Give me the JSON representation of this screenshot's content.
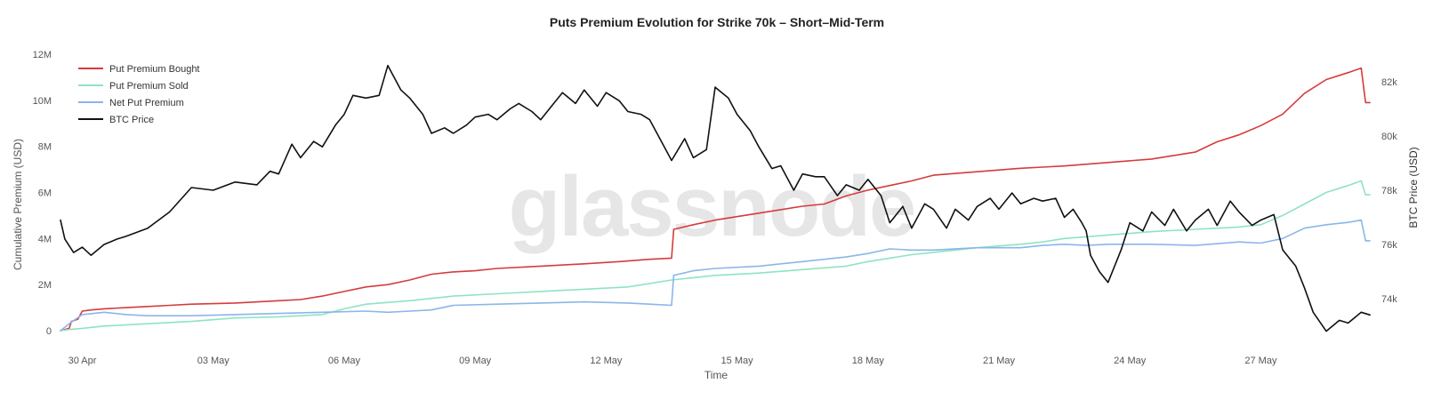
{
  "watermark": "glassnode",
  "chart_data": {
    "type": "line",
    "title": "Puts Premium Evolution for Strike 70k – Short–Mid-Term",
    "xlabel": "Time",
    "ylabel": "Cumulative Premium (USD)",
    "y2label": "BTC Price (USD)",
    "xlim": [
      0,
      30.1
    ],
    "ylim": [
      0,
      12000000
    ],
    "y2lim": [
      72000,
      83000
    ],
    "x_ticks": [
      {
        "x": 0.5,
        "label": "30 Apr"
      },
      {
        "x": 3.5,
        "label": "03 May"
      },
      {
        "x": 6.5,
        "label": "06 May"
      },
      {
        "x": 9.5,
        "label": "09 May"
      },
      {
        "x": 12.5,
        "label": "12 May"
      },
      {
        "x": 15.5,
        "label": "15 May"
      },
      {
        "x": 18.5,
        "label": "18 May"
      },
      {
        "x": 21.5,
        "label": "21 May"
      },
      {
        "x": 24.5,
        "label": "24 May"
      },
      {
        "x": 27.5,
        "label": "27 May"
      }
    ],
    "y_ticks": [
      {
        "v": 0,
        "label": "0"
      },
      {
        "v": 2000000,
        "label": "2M"
      },
      {
        "v": 4000000,
        "label": "4M"
      },
      {
        "v": 6000000,
        "label": "6M"
      },
      {
        "v": 8000000,
        "label": "8M"
      },
      {
        "v": 10000000,
        "label": "10M"
      },
      {
        "v": 12000000,
        "label": "12M"
      }
    ],
    "y2_ticks": [
      {
        "v": 74000,
        "label": "74k"
      },
      {
        "v": 76000,
        "label": "76k"
      },
      {
        "v": 78000,
        "label": "78k"
      },
      {
        "v": 80000,
        "label": "80k"
      },
      {
        "v": 82000,
        "label": "82k"
      }
    ],
    "legend_position": "top-left",
    "grid": false,
    "series": [
      {
        "name": "Put Premium Bought",
        "color": "#d63b3b",
        "axis": "left",
        "x": [
          0.0,
          0.2,
          0.25,
          0.4,
          0.5,
          0.7,
          1.0,
          1.5,
          2.0,
          2.5,
          3.0,
          4.0,
          5.0,
          5.5,
          6.0,
          6.5,
          7.0,
          7.5,
          8.0,
          8.5,
          9.0,
          9.5,
          10.0,
          11.0,
          12.0,
          12.8,
          13.5,
          14.0,
          14.05,
          14.5,
          15.0,
          16.0,
          17.0,
          17.5,
          18.0,
          18.5,
          19.0,
          19.5,
          20.0,
          21.0,
          22.0,
          22.5,
          23.0,
          24.0,
          25.0,
          26.0,
          26.5,
          27.0,
          27.5,
          28.0,
          28.5,
          29.0,
          29.5,
          29.8,
          29.9,
          30.0
        ],
        "y": [
          0,
          100000,
          400000,
          500000,
          850000,
          900000,
          950000,
          1000000,
          1050000,
          1100000,
          1150000,
          1200000,
          1300000,
          1350000,
          1500000,
          1700000,
          1900000,
          2000000,
          2200000,
          2450000,
          2550000,
          2600000,
          2700000,
          2800000,
          2900000,
          3000000,
          3100000,
          3150000,
          4400000,
          4600000,
          4800000,
          5100000,
          5400000,
          5500000,
          5850000,
          6100000,
          6300000,
          6500000,
          6750000,
          6900000,
          7050000,
          7100000,
          7150000,
          7300000,
          7450000,
          7750000,
          8200000,
          8500000,
          8900000,
          9400000,
          10300000,
          10900000,
          11200000,
          11400000,
          9900000,
          9900000
        ]
      },
      {
        "name": "Put Premium Sold",
        "color": "#8fe3c4",
        "axis": "left",
        "x": [
          0.0,
          0.2,
          0.5,
          1.0,
          2.0,
          3.0,
          4.0,
          5.0,
          5.5,
          6.0,
          6.5,
          7.0,
          8.0,
          9.0,
          10.0,
          11.0,
          12.0,
          13.0,
          14.0,
          14.5,
          15.0,
          16.0,
          17.0,
          18.0,
          18.5,
          19.0,
          19.5,
          20.0,
          21.0,
          22.0,
          22.5,
          23.0,
          24.0,
          25.0,
          26.0,
          27.0,
          27.5,
          28.0,
          28.5,
          29.0,
          29.5,
          29.8,
          29.9,
          30.0
        ],
        "y": [
          0,
          50000,
          100000,
          200000,
          300000,
          400000,
          550000,
          600000,
          650000,
          700000,
          950000,
          1150000,
          1300000,
          1500000,
          1600000,
          1700000,
          1800000,
          1900000,
          2200000,
          2300000,
          2400000,
          2500000,
          2650000,
          2800000,
          3000000,
          3150000,
          3300000,
          3400000,
          3600000,
          3750000,
          3850000,
          4000000,
          4150000,
          4300000,
          4400000,
          4500000,
          4600000,
          5000000,
          5500000,
          6000000,
          6300000,
          6500000,
          5900000,
          5900000
        ]
      },
      {
        "name": "Net Put Premium",
        "color": "#8ab6ea",
        "axis": "left",
        "x": [
          0.0,
          0.2,
          0.5,
          1.0,
          1.5,
          2.0,
          3.0,
          4.0,
          5.0,
          6.0,
          7.0,
          7.5,
          8.0,
          8.5,
          9.0,
          10.0,
          11.0,
          12.0,
          13.0,
          13.5,
          14.0,
          14.05,
          14.5,
          15.0,
          16.0,
          17.0,
          18.0,
          18.5,
          19.0,
          19.5,
          20.0,
          21.0,
          22.0,
          22.5,
          23.0,
          23.5,
          24.0,
          25.0,
          26.0,
          27.0,
          27.5,
          28.0,
          28.5,
          29.0,
          29.5,
          29.8,
          29.9,
          30.0
        ],
        "y": [
          0,
          300000,
          700000,
          800000,
          700000,
          650000,
          650000,
          700000,
          750000,
          800000,
          850000,
          800000,
          850000,
          900000,
          1100000,
          1150000,
          1200000,
          1250000,
          1200000,
          1150000,
          1100000,
          2400000,
          2600000,
          2700000,
          2800000,
          3000000,
          3200000,
          3350000,
          3550000,
          3500000,
          3500000,
          3600000,
          3600000,
          3700000,
          3750000,
          3700000,
          3750000,
          3750000,
          3700000,
          3850000,
          3800000,
          4000000,
          4450000,
          4600000,
          4700000,
          4800000,
          3900000,
          3900000
        ]
      },
      {
        "name": "BTC Price",
        "color": "#111111",
        "axis": "right",
        "x": [
          0.0,
          0.1,
          0.3,
          0.5,
          0.7,
          1.0,
          1.3,
          1.5,
          2.0,
          2.5,
          3.0,
          3.5,
          4.0,
          4.5,
          4.8,
          5.0,
          5.3,
          5.5,
          5.8,
          6.0,
          6.3,
          6.5,
          6.7,
          7.0,
          7.3,
          7.5,
          7.8,
          8.0,
          8.3,
          8.5,
          8.8,
          9.0,
          9.3,
          9.5,
          9.8,
          10.0,
          10.3,
          10.5,
          10.8,
          11.0,
          11.3,
          11.5,
          11.8,
          12.0,
          12.3,
          12.5,
          12.8,
          13.0,
          13.3,
          13.5,
          13.8,
          14.0,
          14.3,
          14.5,
          14.8,
          15.0,
          15.3,
          15.5,
          15.8,
          16.0,
          16.3,
          16.5,
          16.8,
          17.0,
          17.3,
          17.5,
          17.8,
          18.0,
          18.3,
          18.5,
          18.8,
          19.0,
          19.3,
          19.5,
          19.8,
          20.0,
          20.3,
          20.5,
          20.8,
          21.0,
          21.3,
          21.5,
          21.8,
          22.0,
          22.3,
          22.5,
          22.8,
          23.0,
          23.2,
          23.4,
          23.5,
          23.6,
          23.8,
          24.0,
          24.3,
          24.5,
          24.8,
          25.0,
          25.3,
          25.5,
          25.8,
          26.0,
          26.3,
          26.5,
          26.8,
          27.0,
          27.3,
          27.5,
          27.8,
          28.0,
          28.3,
          28.5,
          28.7,
          29.0,
          29.3,
          29.5,
          29.8,
          30.0
        ],
        "y": [
          76900,
          76200,
          75700,
          75900,
          75600,
          76000,
          76200,
          76300,
          76600,
          77200,
          78100,
          78000,
          78300,
          78200,
          78700,
          78600,
          79700,
          79200,
          79800,
          79600,
          80400,
          80800,
          81500,
          81400,
          81500,
          82600,
          81700,
          81400,
          80800,
          80100,
          80300,
          80100,
          80400,
          80700,
          80800,
          80600,
          81000,
          81200,
          80900,
          80600,
          81200,
          81600,
          81200,
          81700,
          81100,
          81600,
          81300,
          80900,
          80800,
          80600,
          79700,
          79100,
          79900,
          79200,
          79500,
          81800,
          81400,
          80800,
          80200,
          79600,
          78800,
          78900,
          78000,
          78600,
          78500,
          78500,
          77800,
          78200,
          78000,
          78400,
          77800,
          76800,
          77400,
          76600,
          77500,
          77300,
          76600,
          77300,
          76900,
          77400,
          77700,
          77300,
          77900,
          77500,
          77700,
          77600,
          77700,
          77000,
          77300,
          76800,
          76500,
          75600,
          75000,
          74600,
          75800,
          76800,
          76500,
          77200,
          76700,
          77300,
          76500,
          76900,
          77300,
          76700,
          77600,
          77200,
          76700,
          76900,
          77100,
          75800,
          75200,
          74400,
          73500,
          72800,
          73200,
          73100,
          73500,
          73400
        ]
      }
    ]
  }
}
